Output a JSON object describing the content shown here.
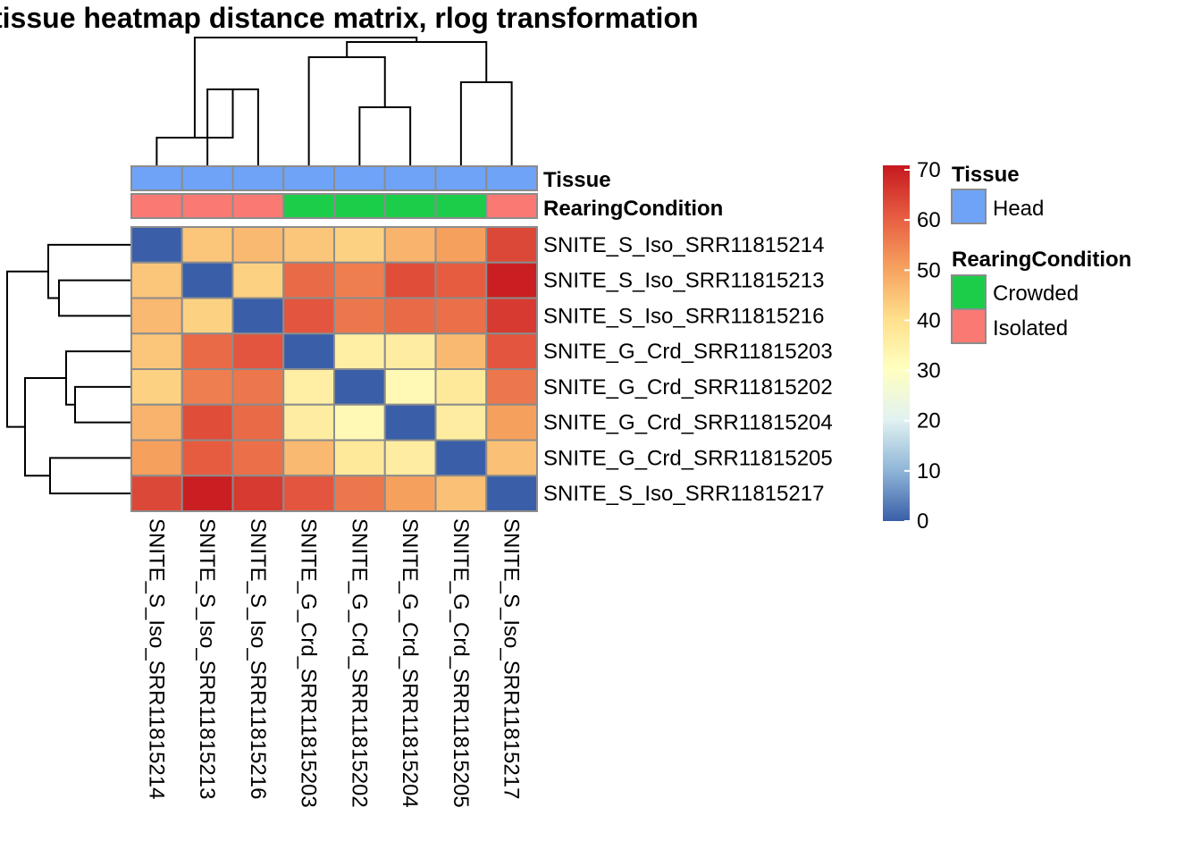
{
  "chart_data": {
    "type": "heatmap",
    "title": "tissue heatmap distance matrix, rlog transformation",
    "samples": [
      "SNITE_S_Iso_SRR11815214",
      "SNITE_S_Iso_SRR11815213",
      "SNITE_S_Iso_SRR11815216",
      "SNITE_G_Crd_SRR11815203",
      "SNITE_G_Crd_SRR11815202",
      "SNITE_G_Crd_SRR11815204",
      "SNITE_G_Crd_SRR11815205",
      "SNITE_S_Iso_SRR11815217"
    ],
    "matrix": [
      [
        0,
        44,
        46,
        44,
        42,
        47,
        50,
        63
      ],
      [
        44,
        0,
        42,
        58,
        55,
        62,
        60,
        69
      ],
      [
        46,
        42,
        0,
        61,
        56,
        58,
        57,
        65
      ],
      [
        44,
        58,
        61,
        0,
        35,
        36,
        46,
        61
      ],
      [
        42,
        55,
        56,
        35,
        0,
        32,
        37,
        56
      ],
      [
        47,
        62,
        58,
        36,
        32,
        0,
        36,
        50
      ],
      [
        50,
        60,
        57,
        46,
        37,
        36,
        0,
        45
      ],
      [
        63,
        69,
        65,
        61,
        56,
        50,
        45,
        0
      ]
    ],
    "annotation_rows": [
      {
        "name": "Tissue",
        "values": [
          "Head",
          "Head",
          "Head",
          "Head",
          "Head",
          "Head",
          "Head",
          "Head"
        ]
      },
      {
        "name": "RearingCondition",
        "values": [
          "Isolated",
          "Isolated",
          "Isolated",
          "Crowded",
          "Crowded",
          "Crowded",
          "Crowded",
          "Isolated"
        ]
      }
    ],
    "colorbar": {
      "range": [
        0,
        70
      ],
      "ticks": [
        "70",
        "60",
        "50",
        "40",
        "30",
        "20",
        "10",
        "0"
      ],
      "colors": [
        "#3a5fa8",
        "#8fb6d8",
        "#e2f2f1",
        "#ffffbf",
        "#fedf8b",
        "#f6a05e",
        "#e65c41",
        "#c6181f"
      ]
    },
    "legend": [
      {
        "title": "Tissue",
        "items": [
          {
            "label": "Head",
            "color": "#6fa3f8"
          }
        ]
      },
      {
        "title": "RearingCondition",
        "items": [
          {
            "label": "Crowded",
            "color": "#1ccd4a"
          },
          {
            "label": "Isolated",
            "color": "#fa7a73"
          }
        ]
      }
    ],
    "annotation_colors": {
      "Head": "#6fa3f8",
      "Crowded": "#1ccd4a",
      "Isolated": "#fa7a73"
    },
    "column_dendrogram": [
      [
        1,
        2
      ],
      [
        0,
        8
      ],
      [
        4,
        5
      ],
      [
        3,
        10
      ],
      [
        6,
        7
      ],
      [
        11,
        12
      ],
      [
        9,
        13
      ]
    ],
    "row_dendrogram": [
      [
        1,
        2
      ],
      [
        0,
        8
      ],
      [
        4,
        5
      ],
      [
        3,
        10
      ],
      [
        6,
        7
      ],
      [
        11,
        12
      ],
      [
        9,
        13
      ]
    ]
  }
}
